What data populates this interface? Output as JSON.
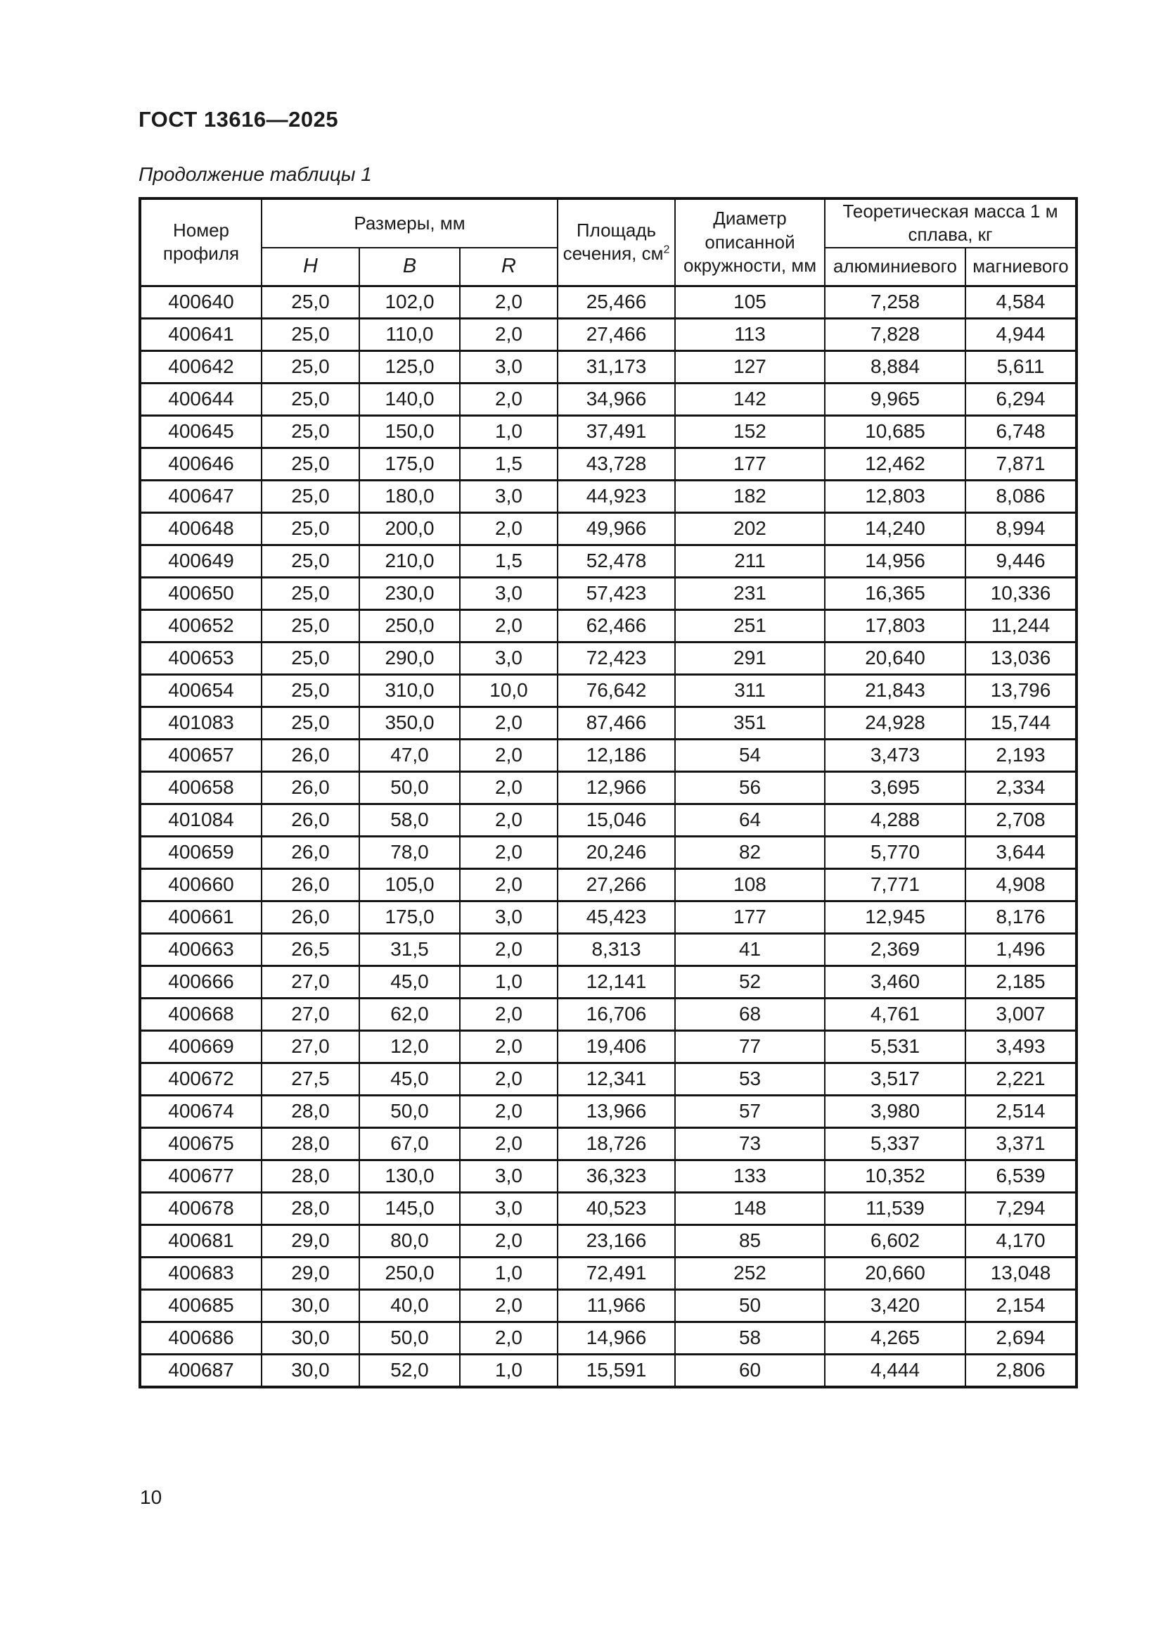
{
  "page": {
    "doc_title": "ГОСТ 13616—2025",
    "table_caption": "Продолжение таблицы 1",
    "page_number": "10",
    "text_color": "#1b1b1b",
    "background_color": "#ffffff"
  },
  "table": {
    "headers": {
      "profile_number": "Номер профиля",
      "dimensions_group": "Размеры, мм",
      "dim_h": "H",
      "dim_b": "B",
      "dim_r": "R",
      "area_line1": "Площадь",
      "area_line2": "сечения, см",
      "area_sup": "2",
      "diameter": "Диаметр описанной окружности, мм",
      "mass_group": "Теоретическая масса 1 м сплава, кг",
      "mass_aluminum": "алюминиевого",
      "mass_magnesium": "магниевого"
    },
    "rows": [
      [
        "400640",
        "25,0",
        "102,0",
        "2,0",
        "25,466",
        "105",
        "7,258",
        "4,584"
      ],
      [
        "400641",
        "25,0",
        "110,0",
        "2,0",
        "27,466",
        "113",
        "7,828",
        "4,944"
      ],
      [
        "400642",
        "25,0",
        "125,0",
        "3,0",
        "31,173",
        "127",
        "8,884",
        "5,611"
      ],
      [
        "400644",
        "25,0",
        "140,0",
        "2,0",
        "34,966",
        "142",
        "9,965",
        "6,294"
      ],
      [
        "400645",
        "25,0",
        "150,0",
        "1,0",
        "37,491",
        "152",
        "10,685",
        "6,748"
      ],
      [
        "400646",
        "25,0",
        "175,0",
        "1,5",
        "43,728",
        "177",
        "12,462",
        "7,871"
      ],
      [
        "400647",
        "25,0",
        "180,0",
        "3,0",
        "44,923",
        "182",
        "12,803",
        "8,086"
      ],
      [
        "400648",
        "25,0",
        "200,0",
        "2,0",
        "49,966",
        "202",
        "14,240",
        "8,994"
      ],
      [
        "400649",
        "25,0",
        "210,0",
        "1,5",
        "52,478",
        "211",
        "14,956",
        "9,446"
      ],
      [
        "400650",
        "25,0",
        "230,0",
        "3,0",
        "57,423",
        "231",
        "16,365",
        "10,336"
      ],
      [
        "400652",
        "25,0",
        "250,0",
        "2,0",
        "62,466",
        "251",
        "17,803",
        "11,244"
      ],
      [
        "400653",
        "25,0",
        "290,0",
        "3,0",
        "72,423",
        "291",
        "20,640",
        "13,036"
      ],
      [
        "400654",
        "25,0",
        "310,0",
        "10,0",
        "76,642",
        "311",
        "21,843",
        "13,796"
      ],
      [
        "401083",
        "25,0",
        "350,0",
        "2,0",
        "87,466",
        "351",
        "24,928",
        "15,744"
      ],
      [
        "400657",
        "26,0",
        "47,0",
        "2,0",
        "12,186",
        "54",
        "3,473",
        "2,193"
      ],
      [
        "400658",
        "26,0",
        "50,0",
        "2,0",
        "12,966",
        "56",
        "3,695",
        "2,334"
      ],
      [
        "401084",
        "26,0",
        "58,0",
        "2,0",
        "15,046",
        "64",
        "4,288",
        "2,708"
      ],
      [
        "400659",
        "26,0",
        "78,0",
        "2,0",
        "20,246",
        "82",
        "5,770",
        "3,644"
      ],
      [
        "400660",
        "26,0",
        "105,0",
        "2,0",
        "27,266",
        "108",
        "7,771",
        "4,908"
      ],
      [
        "400661",
        "26,0",
        "175,0",
        "3,0",
        "45,423",
        "177",
        "12,945",
        "8,176"
      ],
      [
        "400663",
        "26,5",
        "31,5",
        "2,0",
        "8,313",
        "41",
        "2,369",
        "1,496"
      ],
      [
        "400666",
        "27,0",
        "45,0",
        "1,0",
        "12,141",
        "52",
        "3,460",
        "2,185"
      ],
      [
        "400668",
        "27,0",
        "62,0",
        "2,0",
        "16,706",
        "68",
        "4,761",
        "3,007"
      ],
      [
        "400669",
        "27,0",
        "12,0",
        "2,0",
        "19,406",
        "77",
        "5,531",
        "3,493"
      ],
      [
        "400672",
        "27,5",
        "45,0",
        "2,0",
        "12,341",
        "53",
        "3,517",
        "2,221"
      ],
      [
        "400674",
        "28,0",
        "50,0",
        "2,0",
        "13,966",
        "57",
        "3,980",
        "2,514"
      ],
      [
        "400675",
        "28,0",
        "67,0",
        "2,0",
        "18,726",
        "73",
        "5,337",
        "3,371"
      ],
      [
        "400677",
        "28,0",
        "130,0",
        "3,0",
        "36,323",
        "133",
        "10,352",
        "6,539"
      ],
      [
        "400678",
        "28,0",
        "145,0",
        "3,0",
        "40,523",
        "148",
        "11,539",
        "7,294"
      ],
      [
        "400681",
        "29,0",
        "80,0",
        "2,0",
        "23,166",
        "85",
        "6,602",
        "4,170"
      ],
      [
        "400683",
        "29,0",
        "250,0",
        "1,0",
        "72,491",
        "252",
        "20,660",
        "13,048"
      ],
      [
        "400685",
        "30,0",
        "40,0",
        "2,0",
        "11,966",
        "50",
        "3,420",
        "2,154"
      ],
      [
        "400686",
        "30,0",
        "50,0",
        "2,0",
        "14,966",
        "58",
        "4,265",
        "2,694"
      ],
      [
        "400687",
        "30,0",
        "52,0",
        "1,0",
        "15,591",
        "60",
        "4,444",
        "2,806"
      ]
    ]
  }
}
